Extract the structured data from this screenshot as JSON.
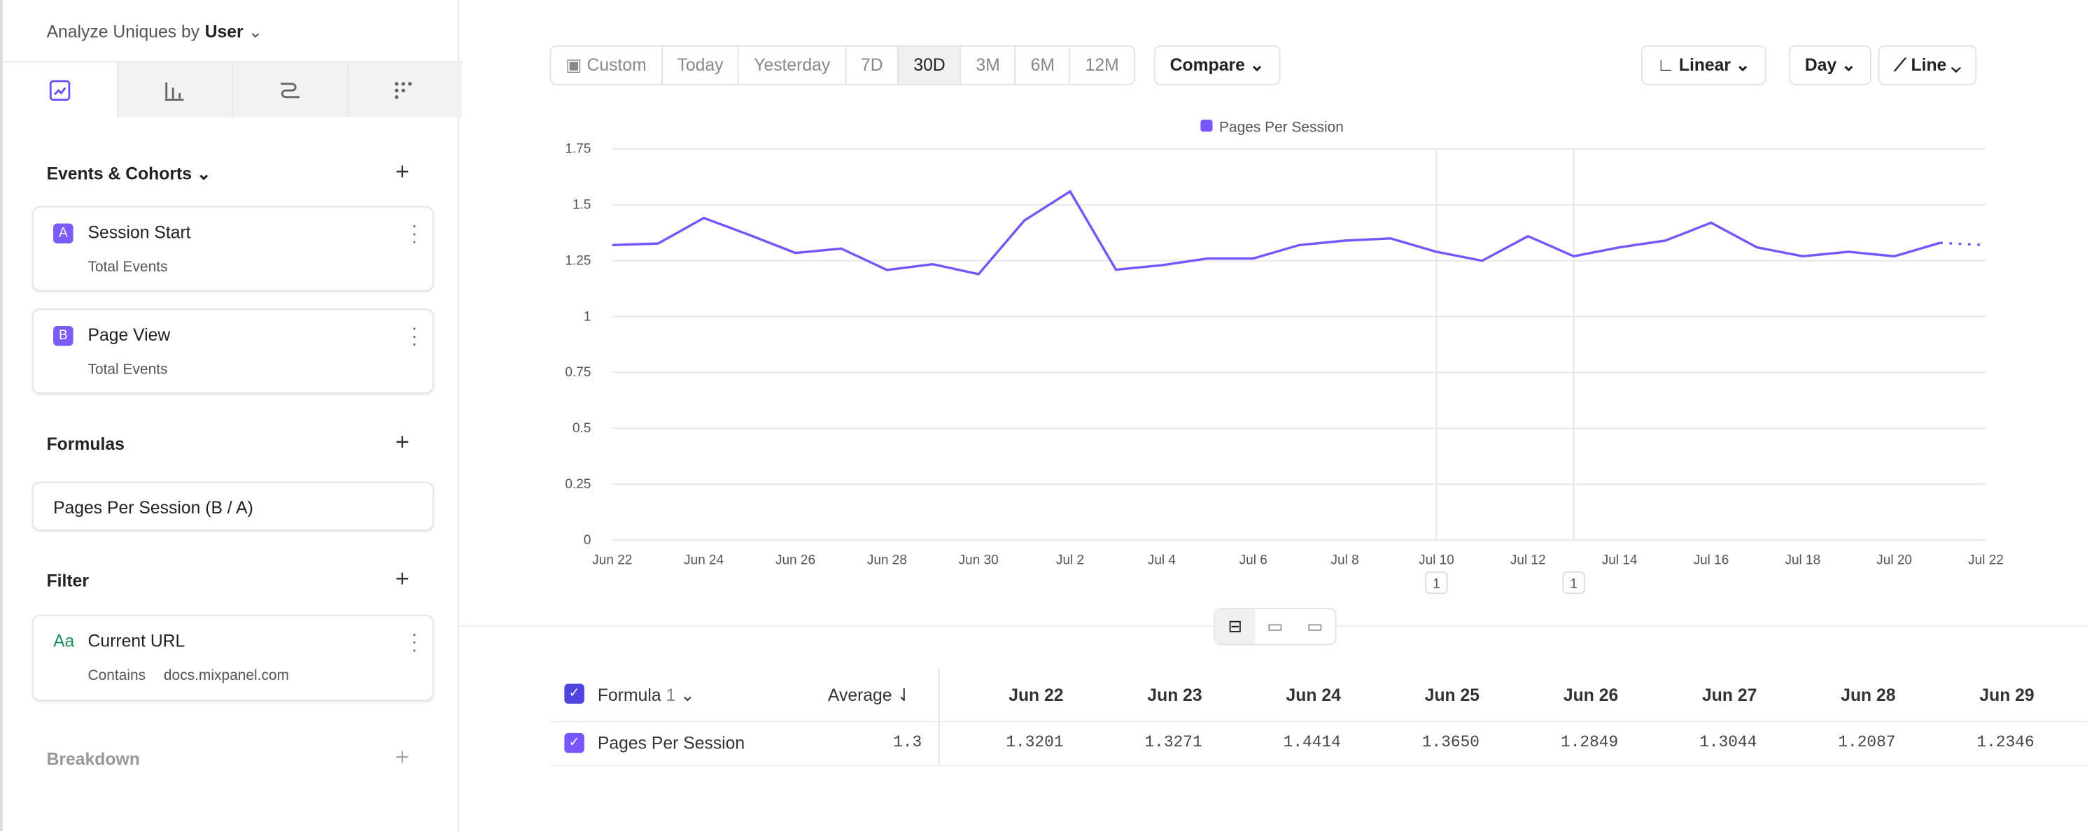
{
  "sidebar": {
    "analyze_label": "Analyze Uniques by",
    "analyze_value": "User",
    "tabs": [
      "insights-icon",
      "bars-icon",
      "flows-icon",
      "grid-icon"
    ],
    "events_title": "Events & Cohorts",
    "events": [
      {
        "letter": "A",
        "name": "Session Start",
        "sub": "Total Events"
      },
      {
        "letter": "B",
        "name": "Page View",
        "sub": "Total Events"
      }
    ],
    "formulas_title": "Formulas",
    "formula": "Pages Per Session (B / A)",
    "filter_title": "Filter",
    "filter": {
      "icon": "Aa",
      "name": "Current URL",
      "op": "Contains",
      "value": "docs.mixpanel.com"
    },
    "breakdown_title": "Breakdown"
  },
  "toolbar": {
    "ranges": [
      "Custom",
      "Today",
      "Yesterday",
      "7D",
      "30D",
      "3M",
      "6M",
      "12M"
    ],
    "selected": "30D",
    "compare": "Compare",
    "scale": "Linear",
    "interval": "Day",
    "chart_type": "Line"
  },
  "colors": {
    "accent": "#7856ff",
    "formula_check": "#4f44e0"
  },
  "chart_data": {
    "type": "line",
    "legend": "Pages Per Session",
    "legend_placement": "top-center",
    "yticks": [
      "0",
      "0.25",
      "0.5",
      "0.75",
      "1",
      "1.25",
      "1.5",
      "1.75"
    ],
    "ylim": [
      0,
      1.75
    ],
    "xticks": [
      "Jun 22",
      "Jun 24",
      "Jun 26",
      "Jun 28",
      "Jun 30",
      "Jul 2",
      "Jul 4",
      "Jul 6",
      "Jul 8",
      "Jul 10",
      "Jul 12",
      "Jul 14",
      "Jul 16",
      "Jul 18",
      "Jul 20",
      "Jul 22"
    ],
    "grid": true,
    "x": [
      "Jun 22",
      "Jun 23",
      "Jun 24",
      "Jun 25",
      "Jun 26",
      "Jun 27",
      "Jun 28",
      "Jun 29",
      "Jun 30",
      "Jul 1",
      "Jul 2",
      "Jul 3",
      "Jul 4",
      "Jul 5",
      "Jul 6",
      "Jul 7",
      "Jul 8",
      "Jul 9",
      "Jul 10",
      "Jul 11",
      "Jul 12",
      "Jul 13",
      "Jul 14",
      "Jul 15",
      "Jul 16",
      "Jul 17",
      "Jul 18",
      "Jul 19",
      "Jul 20",
      "Jul 21",
      "Jul 22"
    ],
    "values": [
      1.3201,
      1.3271,
      1.4414,
      1.365,
      1.2849,
      1.3044,
      1.2087,
      1.2346,
      1.19,
      1.43,
      1.56,
      1.21,
      1.23,
      1.26,
      1.26,
      1.32,
      1.34,
      1.35,
      1.29,
      1.25,
      1.36,
      1.27,
      1.31,
      1.34,
      1.42,
      1.31,
      1.27,
      1.29,
      1.27,
      1.33,
      1.32
    ],
    "partial_from": "Jul 21",
    "annotations": [
      {
        "date": "Jul 10",
        "label": "1"
      },
      {
        "date": "Jul 13",
        "label": "1"
      }
    ]
  },
  "table": {
    "group": "Formula",
    "group_count": "1",
    "avg_label": "Average",
    "columns": [
      "Jun 22",
      "Jun 23",
      "Jun 24",
      "Jun 25",
      "Jun 26",
      "Jun 27",
      "Jun 28",
      "Jun 29"
    ],
    "row": {
      "name": "Pages Per Session",
      "avg": "1.3",
      "values": [
        "1.3201",
        "1.3271",
        "1.4414",
        "1.3650",
        "1.2849",
        "1.3044",
        "1.2087",
        "1.2346"
      ]
    }
  }
}
